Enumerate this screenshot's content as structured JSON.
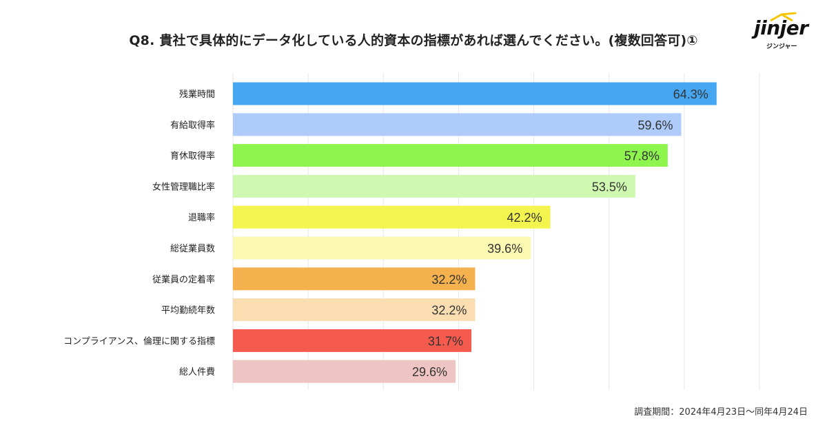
{
  "header": {
    "title": "Q8. 貴社で具体的にデータ化している人的資本の指標があれば選んでください。(複数回答可)①"
  },
  "logo": {
    "word": "jinjer",
    "sub": "ジンジャー"
  },
  "footnote": "調査期間：2024年4月23日〜同年4月24日",
  "chart_data": {
    "type": "bar",
    "orientation": "horizontal",
    "title": "",
    "xlim": [
      0,
      70
    ],
    "grid": true,
    "categories": [
      "残業時間",
      "有給取得率",
      "育休取得率",
      "女性管理職比率",
      "退職率",
      "総従業員数",
      "従業員の定着率",
      "平均勤続年数",
      "コンプライアンス、倫理に関する指標",
      "総人件費"
    ],
    "values": [
      64.3,
      59.6,
      57.8,
      53.5,
      42.2,
      39.6,
      32.2,
      32.2,
      31.7,
      29.6
    ],
    "labels": [
      "64.3%",
      "59.6%",
      "57.8%",
      "53.5%",
      "42.2%",
      "39.6%",
      "32.2%",
      "32.2%",
      "31.7%",
      "29.6%"
    ],
    "colors": [
      "#45A6F2",
      "#AECBFA",
      "#8DF54E",
      "#CFF9B0",
      "#F3F54E",
      "#FBF9B2",
      "#F4B14E",
      "#FBDDB2",
      "#F45A4E",
      "#EEC5C3"
    ]
  }
}
